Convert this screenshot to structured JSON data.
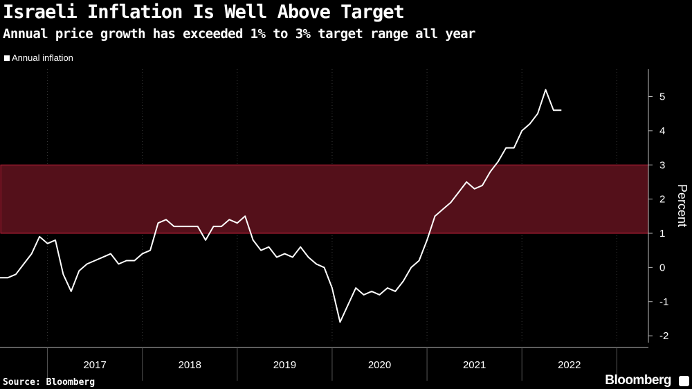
{
  "chart_data": {
    "type": "line",
    "title": "Israeli Inflation Is Well Above Target",
    "subtitle": "Annual price growth has exceeded 1% to 3% target range all year",
    "legend": [
      "Annual inflation"
    ],
    "ylabel": "Percent",
    "ylim": [
      -2.2,
      5.8
    ],
    "yticks": [
      "-2",
      "-1",
      "0",
      "1",
      "2",
      "3",
      "4",
      "5"
    ],
    "ytick_values": [
      -2,
      -1,
      0,
      1,
      2,
      3,
      4,
      5
    ],
    "xlim": [
      2016.0,
      2022.833
    ],
    "xticks": [
      "2017",
      "2018",
      "2019",
      "2020",
      "2021",
      "2022"
    ],
    "xtick_centers": [
      2017.0,
      2018.0,
      2019.0,
      2020.0,
      2021.0,
      2022.0
    ],
    "xdividers": [
      2016.5,
      2017.5,
      2018.5,
      2019.5,
      2020.5,
      2021.5,
      2022.5
    ],
    "target_range": {
      "low": 1,
      "high": 3,
      "color": "#54101a",
      "border": "#c2203a"
    },
    "line_color": "#ffffff",
    "series": [
      {
        "name": "Annual inflation",
        "start": 2016.0,
        "step": 0.08333,
        "values": [
          -0.3,
          -0.3,
          -0.2,
          0.1,
          0.4,
          0.9,
          0.7,
          0.8,
          -0.2,
          -0.7,
          -0.1,
          0.1,
          0.2,
          0.3,
          0.4,
          0.1,
          0.2,
          0.2,
          0.4,
          0.5,
          1.3,
          1.4,
          1.2,
          1.2,
          1.2,
          1.2,
          0.8,
          1.2,
          1.2,
          1.4,
          1.3,
          1.5,
          0.8,
          0.5,
          0.6,
          0.3,
          0.4,
          0.3,
          0.6,
          0.3,
          0.1,
          0.0,
          -0.6,
          -1.6,
          -1.1,
          -0.6,
          -0.8,
          -0.7,
          -0.8,
          -0.6,
          -0.7,
          -0.4,
          0.0,
          0.2,
          0.8,
          1.5,
          1.7,
          1.9,
          2.2,
          2.5,
          2.3,
          2.4,
          2.8,
          3.1,
          3.5,
          3.5,
          4.0,
          4.2,
          4.5,
          5.2,
          4.6,
          4.6
        ]
      }
    ]
  },
  "footer": {
    "source": "Source: Bloomberg",
    "brand": "Bloomberg"
  }
}
